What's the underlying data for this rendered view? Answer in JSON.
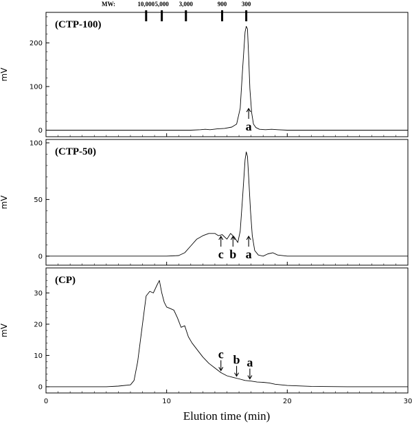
{
  "figure": {
    "xlabel": "Elution time (min)",
    "mw_label": "MW:",
    "mw_markers": [
      {
        "label": "10,000",
        "x": 8.3
      },
      {
        "label": "5,000",
        "x": 9.6
      },
      {
        "label": "3,000",
        "x": 11.6
      },
      {
        "label": "900",
        "x": 14.6
      },
      {
        "label": "300",
        "x": 16.6
      }
    ]
  },
  "chart_data": [
    {
      "type": "line",
      "title": "(CTP-100)",
      "xlabel": "",
      "ylabel": "mV",
      "xlim": [
        0,
        30
      ],
      "ylim": [
        -15,
        270
      ],
      "yticks": [
        0,
        100,
        200
      ],
      "grid": false,
      "series": [
        {
          "x": [
            0,
            5,
            8,
            10,
            12,
            12.8,
            13.2,
            13.6,
            14.2,
            14.8,
            15.4,
            15.8,
            16.1,
            16.3,
            16.5,
            16.6,
            16.7,
            16.8,
            16.9,
            17.05,
            17.2,
            17.4,
            17.7,
            18.2,
            18.7,
            19.2,
            20,
            25,
            30
          ],
          "values": [
            0,
            0,
            0,
            0,
            0,
            1,
            2,
            1,
            3,
            4,
            7,
            14,
            50,
            140,
            225,
            238,
            232,
            170,
            95,
            40,
            14,
            6,
            2,
            1,
            2,
            1,
            0,
            0,
            0
          ]
        }
      ],
      "annotations": [
        {
          "label": "a",
          "x": 16.8,
          "direction": "up"
        }
      ]
    },
    {
      "type": "line",
      "title": "(CTP-50)",
      "xlabel": "",
      "ylabel": "mV",
      "xlim": [
        0,
        30
      ],
      "ylim": [
        -8,
        103
      ],
      "yticks": [
        0,
        50,
        100
      ],
      "grid": false,
      "series": [
        {
          "x": [
            0,
            5,
            8,
            10,
            11,
            11.5,
            12,
            12.5,
            13,
            13.5,
            14,
            14.3,
            14.6,
            15,
            15.3,
            15.6,
            15.9,
            16.1,
            16.3,
            16.5,
            16.6,
            16.7,
            16.8,
            16.95,
            17.1,
            17.3,
            17.6,
            18,
            18.4,
            18.8,
            19.2,
            20,
            25,
            30
          ],
          "values": [
            0,
            0,
            0,
            0,
            0.5,
            3,
            9,
            15,
            18,
            20,
            20,
            18,
            19,
            15,
            20,
            17,
            12,
            22,
            52,
            85,
            92,
            88,
            70,
            40,
            18,
            5,
            1,
            0,
            2,
            3,
            1,
            0,
            0,
            0
          ]
        }
      ],
      "annotations": [
        {
          "label": "c",
          "x": 14.5,
          "direction": "up"
        },
        {
          "label": "b",
          "x": 15.5,
          "direction": "up"
        },
        {
          "label": "a",
          "x": 16.8,
          "direction": "up"
        }
      ]
    },
    {
      "type": "line",
      "title": "(CP)",
      "xlabel": "",
      "ylabel": "mV",
      "xlim": [
        0,
        30
      ],
      "ylim": [
        -2,
        38
      ],
      "yticks": [
        0,
        10,
        20,
        30
      ],
      "xticks": [
        0,
        10,
        20,
        30
      ],
      "grid": false,
      "series": [
        {
          "x": [
            0,
            5,
            6,
            7,
            7.3,
            7.6,
            8,
            8.3,
            8.6,
            8.9,
            9.2,
            9.4,
            9.6,
            9.8,
            10,
            10.3,
            10.6,
            10.9,
            11.2,
            11.5,
            11.8,
            12.1,
            12.5,
            13,
            13.5,
            14,
            14.5,
            15,
            15.5,
            16,
            16.5,
            17,
            17.5,
            18,
            18.5,
            19,
            20,
            22,
            25,
            30
          ],
          "values": [
            0,
            0,
            0.2,
            0.6,
            2,
            8,
            20,
            29,
            30.5,
            30,
            32.5,
            34,
            30,
            27,
            25.5,
            25,
            24.5,
            22,
            19,
            19.5,
            16,
            14,
            12,
            9.5,
            7.5,
            6,
            4.5,
            3.5,
            3,
            2.5,
            2,
            1.8,
            1.5,
            1.4,
            1.2,
            0.8,
            0.4,
            0.1,
            0,
            0
          ]
        }
      ],
      "annotations": [
        {
          "label": "c",
          "x": 14.5,
          "direction": "down"
        },
        {
          "label": "b",
          "x": 15.8,
          "direction": "down"
        },
        {
          "label": "a",
          "x": 16.9,
          "direction": "down"
        }
      ]
    }
  ]
}
